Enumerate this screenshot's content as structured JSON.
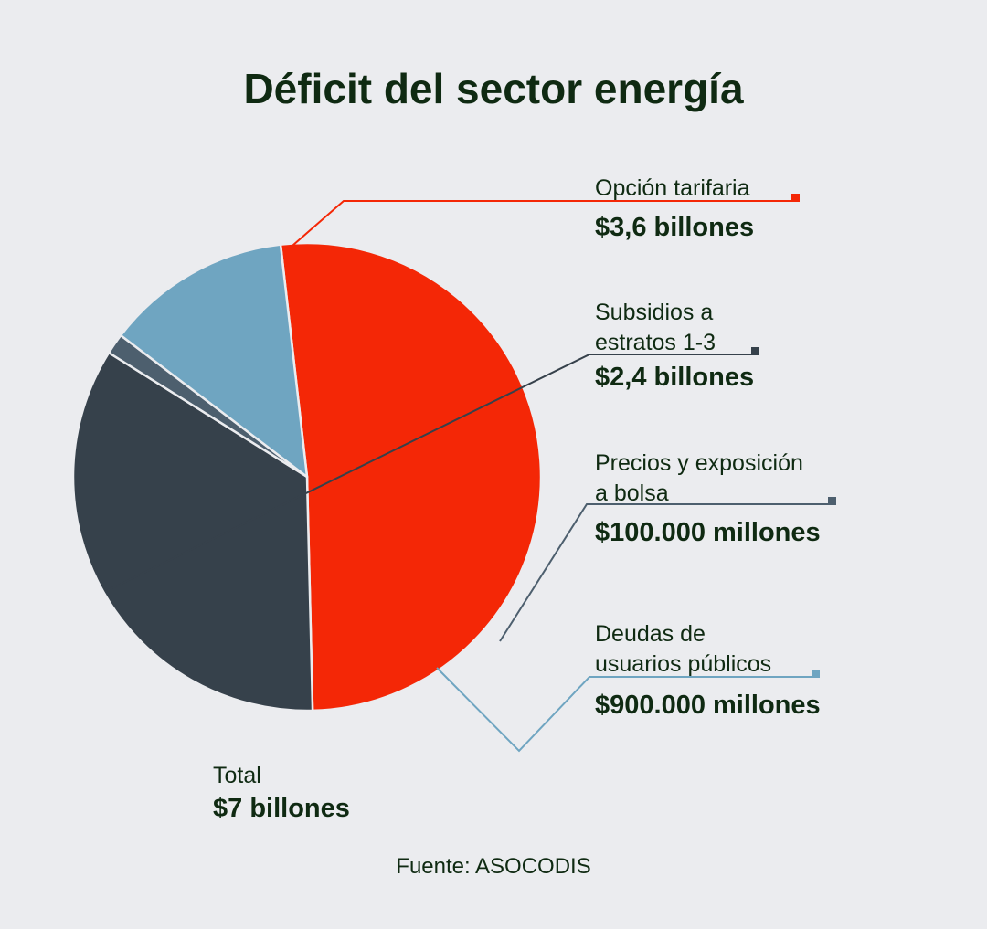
{
  "chart_data": {
    "type": "pie",
    "title": "Déficit del sector energía",
    "unit": "billones de pesos",
    "slices": [
      {
        "name_lines": [
          "Opción tarifaria"
        ],
        "value_label": "$3,6 billones",
        "value": 3.6,
        "color": "#f42706"
      },
      {
        "name_lines": [
          "Subsidios a",
          "estratos 1-3"
        ],
        "value_label": "$2,4 billones",
        "value": 2.4,
        "color": "#36414b"
      },
      {
        "name_lines": [
          "Precios y exposición",
          "a bolsa"
        ],
        "value_label": "$100.000 millones",
        "value": 0.1,
        "color": "#4d5f6e"
      },
      {
        "name_lines": [
          "Deudas de",
          "usuarios públicos"
        ],
        "value_label": "$900.000 millones",
        "value": 0.9,
        "color": "#6fa5c1"
      }
    ],
    "total": {
      "label": "Total",
      "value_label": "$7 billones",
      "value": 7
    },
    "source": "Fuente: ASOCODIS"
  }
}
